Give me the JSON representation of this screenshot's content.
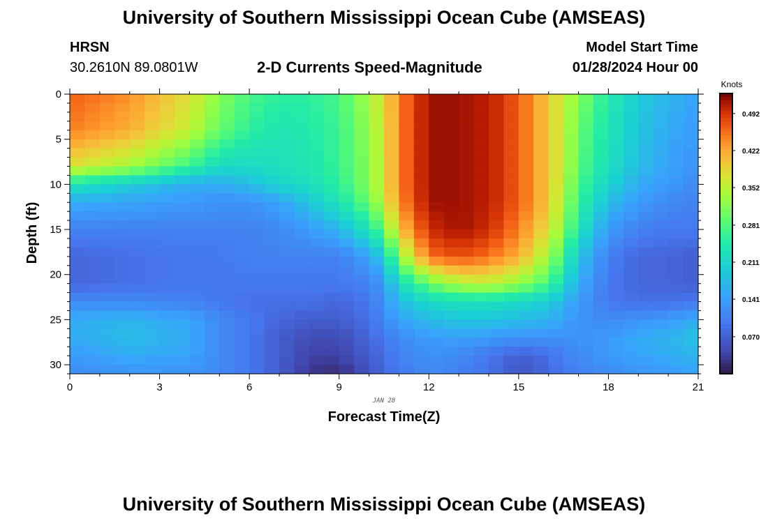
{
  "header": {
    "title": "University of Southern Mississippi Ocean Cube (AMSEAS)",
    "station_name": "HRSN",
    "station_coords": "30.2610N  89.0801W",
    "plot_subtitle": "2-D Currents Speed-Magnitude",
    "model_start_label": "Model Start Time",
    "model_start_value": "01/28/2024 Hour 00"
  },
  "footer": {
    "title": "University of Southern Mississippi Ocean Cube (AMSEAS)"
  },
  "chart_data": {
    "type": "heatmap",
    "title": "2-D Currents Speed-Magnitude",
    "xlabel": "Forecast Time(Z)",
    "ylabel": "Depth (ft)",
    "x_date_label": "JAN 28",
    "xlim": [
      0,
      21
    ],
    "ylim": [
      0,
      31
    ],
    "y_inverted": true,
    "x_ticks": [
      0,
      3,
      6,
      9,
      12,
      15,
      18,
      21
    ],
    "y_ticks": [
      0,
      5,
      10,
      15,
      20,
      25,
      30
    ],
    "x_step_hours": 0.5,
    "y_step_ft": 1,
    "colorbar": {
      "label": "Knots",
      "min": 0.0,
      "max": 0.53,
      "ticks": [
        "0.070",
        "0.141",
        "0.211",
        "0.281",
        "0.352",
        "0.422",
        "0.492"
      ]
    },
    "speed_field_keyframes": {
      "description": "Approximate current speed (knots) at key times (hours) and depths (ft); full grid interpolated between them",
      "depths_ft": [
        0,
        4,
        8,
        10,
        12,
        15,
        18,
        21,
        23,
        25,
        27,
        29,
        31
      ],
      "times_h": [
        0,
        2,
        4,
        5,
        6,
        7,
        8,
        9,
        10,
        10.5,
        11,
        12,
        13,
        14,
        15,
        16,
        16.5,
        17,
        18,
        19,
        20,
        21
      ],
      "rows": [
        [
          0.47,
          0.44,
          0.38,
          0.32,
          0.28,
          0.26,
          0.26,
          0.28,
          0.34,
          0.38,
          0.45,
          0.52,
          0.52,
          0.51,
          0.47,
          0.4,
          0.36,
          0.32,
          0.25,
          0.2,
          0.17,
          0.15
        ],
        [
          0.45,
          0.42,
          0.36,
          0.3,
          0.26,
          0.24,
          0.25,
          0.27,
          0.33,
          0.37,
          0.45,
          0.52,
          0.52,
          0.51,
          0.47,
          0.4,
          0.36,
          0.3,
          0.24,
          0.19,
          0.16,
          0.14
        ],
        [
          0.38,
          0.34,
          0.27,
          0.22,
          0.22,
          0.23,
          0.24,
          0.27,
          0.32,
          0.37,
          0.45,
          0.52,
          0.52,
          0.51,
          0.47,
          0.4,
          0.36,
          0.29,
          0.23,
          0.18,
          0.15,
          0.13
        ],
        [
          0.24,
          0.2,
          0.16,
          0.16,
          0.18,
          0.21,
          0.23,
          0.26,
          0.32,
          0.37,
          0.45,
          0.52,
          0.52,
          0.51,
          0.47,
          0.4,
          0.35,
          0.28,
          0.21,
          0.16,
          0.14,
          0.12
        ],
        [
          0.16,
          0.15,
          0.14,
          0.13,
          0.13,
          0.15,
          0.19,
          0.24,
          0.3,
          0.36,
          0.44,
          0.52,
          0.52,
          0.51,
          0.47,
          0.4,
          0.34,
          0.27,
          0.18,
          0.14,
          0.12,
          0.11
        ],
        [
          0.11,
          0.11,
          0.11,
          0.11,
          0.11,
          0.12,
          0.14,
          0.17,
          0.24,
          0.3,
          0.4,
          0.5,
          0.52,
          0.5,
          0.45,
          0.38,
          0.32,
          0.24,
          0.14,
          0.11,
          0.1,
          0.1
        ],
        [
          0.08,
          0.09,
          0.1,
          0.1,
          0.11,
          0.11,
          0.11,
          0.11,
          0.15,
          0.2,
          0.32,
          0.46,
          0.48,
          0.46,
          0.42,
          0.34,
          0.27,
          0.19,
          0.11,
          0.08,
          0.08,
          0.07
        ],
        [
          0.08,
          0.09,
          0.1,
          0.1,
          0.1,
          0.1,
          0.1,
          0.1,
          0.11,
          0.14,
          0.22,
          0.3,
          0.35,
          0.36,
          0.33,
          0.28,
          0.22,
          0.16,
          0.1,
          0.08,
          0.08,
          0.07
        ],
        [
          0.12,
          0.12,
          0.11,
          0.1,
          0.09,
          0.09,
          0.09,
          0.08,
          0.1,
          0.13,
          0.18,
          0.22,
          0.23,
          0.23,
          0.22,
          0.2,
          0.17,
          0.14,
          0.1,
          0.09,
          0.09,
          0.1
        ],
        [
          0.16,
          0.17,
          0.15,
          0.12,
          0.1,
          0.08,
          0.07,
          0.07,
          0.09,
          0.12,
          0.15,
          0.18,
          0.19,
          0.19,
          0.18,
          0.17,
          0.15,
          0.13,
          0.12,
          0.13,
          0.14,
          0.16
        ],
        [
          0.16,
          0.18,
          0.16,
          0.12,
          0.1,
          0.07,
          0.05,
          0.05,
          0.08,
          0.1,
          0.12,
          0.14,
          0.15,
          0.14,
          0.13,
          0.13,
          0.13,
          0.13,
          0.14,
          0.16,
          0.17,
          0.19
        ],
        [
          0.14,
          0.16,
          0.15,
          0.12,
          0.1,
          0.07,
          0.04,
          0.04,
          0.07,
          0.09,
          0.11,
          0.13,
          0.12,
          0.1,
          0.07,
          0.09,
          0.11,
          0.12,
          0.14,
          0.15,
          0.16,
          0.17
        ],
        [
          0.12,
          0.13,
          0.13,
          0.12,
          0.1,
          0.07,
          0.03,
          0.02,
          0.06,
          0.08,
          0.1,
          0.12,
          0.11,
          0.09,
          0.06,
          0.08,
          0.1,
          0.11,
          0.12,
          0.13,
          0.14,
          0.15
        ]
      ]
    }
  }
}
